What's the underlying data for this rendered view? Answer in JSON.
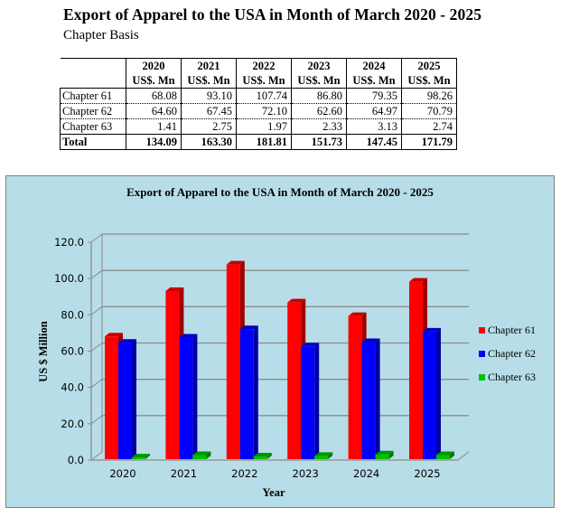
{
  "header": {
    "title": "Export of Apparel to the USA in Month of March 2020 - 2025",
    "subtitle": "Chapter Basis"
  },
  "table": {
    "years": [
      "2020",
      "2021",
      "2022",
      "2023",
      "2024",
      "2025"
    ],
    "unit": "US$. Mn",
    "rows": [
      {
        "label": "Chapter 61",
        "values": [
          "68.08",
          "93.10",
          "107.74",
          "86.80",
          "79.35",
          "98.26"
        ]
      },
      {
        "label": "Chapter 62",
        "values": [
          "64.60",
          "67.45",
          "72.10",
          "62.60",
          "64.97",
          "70.79"
        ]
      },
      {
        "label": "Chapter 63",
        "values": [
          "1.41",
          "2.75",
          "1.97",
          "2.33",
          "3.13",
          "2.74"
        ]
      }
    ],
    "total": {
      "label": "Total",
      "values": [
        "134.09",
        "163.30",
        "181.81",
        "151.73",
        "147.45",
        "171.79"
      ]
    }
  },
  "chart_data": {
    "type": "bar",
    "title": "Export of Apparel to the USA in Month of March 2020 - 2025",
    "xlabel": "Year",
    "ylabel": "US $ Million",
    "categories": [
      "2020",
      "2021",
      "2022",
      "2023",
      "2024",
      "2025"
    ],
    "series": [
      {
        "name": "Chapter 61",
        "color": "#ff0000",
        "values": [
          68.08,
          93.1,
          107.74,
          86.8,
          79.35,
          98.26
        ]
      },
      {
        "name": "Chapter 62",
        "color": "#0000ff",
        "values": [
          64.6,
          67.45,
          72.1,
          62.6,
          64.97,
          70.79
        ]
      },
      {
        "name": "Chapter 63",
        "color": "#00c000",
        "values": [
          1.41,
          2.75,
          1.97,
          2.33,
          3.13,
          2.74
        ]
      }
    ],
    "ylim": [
      0,
      120
    ],
    "yticks": [
      "0.0",
      "20.0",
      "40.0",
      "60.0",
      "80.0",
      "100.0",
      "120.0"
    ],
    "grid": true,
    "legend": "right",
    "background": "#b7dde8",
    "style": "3d-clustered-column"
  }
}
